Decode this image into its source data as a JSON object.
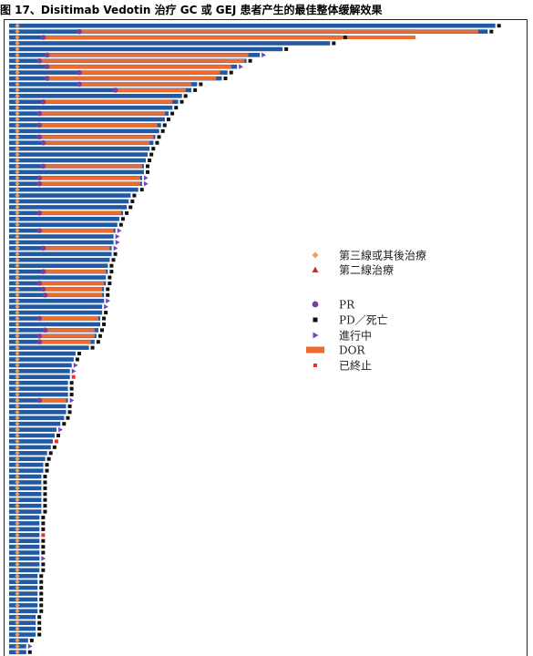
{
  "figure": {
    "title": "图 17、Disitimab Vedotin 治疗 GC 或 GEJ 患者产生的最佳整体缓解效果"
  },
  "colors": {
    "bar": "#2259a3",
    "dor": "#ee6b2c",
    "third_line": "#f2a154",
    "second_line": "#b83a2c",
    "pr": "#7b3f9b",
    "pd": "#111111",
    "ongoing": "#7a44b8",
    "stopped": "#e8322a"
  },
  "chart_data": {
    "type": "bar",
    "orientation": "horizontal",
    "title": "图 17、Disitimab Vedotin 治疗 GC 或 GEJ 患者产生的最佳整体缓解效果",
    "xlabel": "",
    "ylabel": "",
    "xlim": [
      0,
      26
    ],
    "legend": {
      "placement": "right",
      "entries": [
        {
          "label": "第三線或其後治療",
          "marker": "diamond"
        },
        {
          "label": "第二線治療",
          "marker": "triangle-up"
        },
        {
          "label": "PR",
          "marker": "circle"
        },
        {
          "label": "PD／死亡",
          "marker": "square"
        },
        {
          "label": "進行中",
          "marker": "triangle-right"
        },
        {
          "label": "DOR",
          "marker": "bar"
        },
        {
          "label": "已終止",
          "marker": "small-square"
        }
      ]
    },
    "series": [
      {
        "name": "第三線或其後治療",
        "values": []
      }
    ],
    "patients": [
      {
        "duration": 25.6,
        "line": "third",
        "end": "pd"
      },
      {
        "duration": 25.2,
        "line": "third",
        "pr": 3.7,
        "dor_end": 24.7,
        "end": "pd"
      },
      {
        "duration": 17.5,
        "line": "third",
        "pr": 1.8,
        "dor_end": 21.4,
        "end": "pd"
      },
      {
        "duration": 16.9,
        "line": "third",
        "end": "pd"
      },
      {
        "duration": 14.4,
        "line": "third",
        "end": "pd"
      },
      {
        "duration": 13.2,
        "line": "third",
        "pr": 2.0,
        "dor_end": 12.6,
        "end": "ongoing"
      },
      {
        "duration": 12.5,
        "line": "third",
        "pr": 1.6,
        "dor_end": 12.4,
        "end": "pd"
      },
      {
        "duration": 12.0,
        "line": "third",
        "pr": 2.0,
        "dor_end": 11.7,
        "end": "ongoing"
      },
      {
        "duration": 11.5,
        "line": "third",
        "pr": 3.7,
        "dor_end": 11.1,
        "end": "pd"
      },
      {
        "duration": 11.2,
        "line": "third",
        "pr": 2.0,
        "dor_end": 10.9,
        "end": "pd"
      },
      {
        "duration": 9.9,
        "line": "third",
        "pr": 3.7,
        "dor_end": 9.6,
        "end": "pd"
      },
      {
        "duration": 9.6,
        "line": "third",
        "pr": 5.6,
        "dor_end": 9.3,
        "end": "pd"
      },
      {
        "duration": 9.1,
        "line": "third",
        "end": "pd"
      },
      {
        "duration": 8.9,
        "line": "third",
        "pr": 1.8,
        "dor_end": 8.6,
        "end": "pd"
      },
      {
        "duration": 8.6,
        "line": "third",
        "end": "pd"
      },
      {
        "duration": 8.4,
        "line": "third",
        "pr": 1.6,
        "dor_end": 8.2,
        "end": "pd"
      },
      {
        "duration": 8.2,
        "line": "third",
        "end": "pd"
      },
      {
        "duration": 8.0,
        "line": "third",
        "pr": 1.6,
        "dor_end": 7.8,
        "end": "pd"
      },
      {
        "duration": 7.9,
        "line": "third",
        "end": "pd"
      },
      {
        "duration": 7.7,
        "line": "third",
        "pr": 1.6,
        "dor_end": 7.6,
        "end": "pd"
      },
      {
        "duration": 7.6,
        "line": "third",
        "pr": 1.8,
        "dor_end": 7.4,
        "end": "pd"
      },
      {
        "duration": 7.4,
        "line": "third",
        "end": "pd"
      },
      {
        "duration": 7.3,
        "line": "third",
        "end": "pd"
      },
      {
        "duration": 7.2,
        "line": "third",
        "end": "pd"
      },
      {
        "duration": 7.1,
        "line": "third",
        "pr": 1.8,
        "dor_end": 7.0,
        "end": "pd"
      },
      {
        "duration": 7.1,
        "line": "third",
        "end": "pd"
      },
      {
        "duration": 7.0,
        "line": "third",
        "pr": 1.6,
        "dor_end": 6.9,
        "end": "ongoing"
      },
      {
        "duration": 7.0,
        "line": "third",
        "pr": 1.6,
        "dor_end": 6.9,
        "end": "ongoing"
      },
      {
        "duration": 6.8,
        "line": "third",
        "end": "pd"
      },
      {
        "duration": 6.4,
        "line": "third",
        "end": "pd"
      },
      {
        "duration": 6.3,
        "line": "third",
        "end": "pd"
      },
      {
        "duration": 6.2,
        "line": "third",
        "end": "pd"
      },
      {
        "duration": 6.0,
        "line": "third",
        "pr": 1.6,
        "dor_end": 5.9,
        "end": "pd"
      },
      {
        "duration": 5.8,
        "line": "third",
        "end": "pd"
      },
      {
        "duration": 5.7,
        "line": "third",
        "end": "pd"
      },
      {
        "duration": 5.6,
        "line": "third",
        "pr": 1.6,
        "dor_end": 5.5,
        "end": "ongoing"
      },
      {
        "duration": 5.5,
        "line": "third",
        "end": "ongoing"
      },
      {
        "duration": 5.5,
        "line": "third",
        "end": "ongoing"
      },
      {
        "duration": 5.4,
        "line": "third",
        "pr": 1.8,
        "dor_end": 5.3,
        "end": "ongoing"
      },
      {
        "duration": 5.4,
        "line": "third",
        "end": "pd"
      },
      {
        "duration": 5.3,
        "line": "third",
        "end": "pd"
      },
      {
        "duration": 5.2,
        "line": "third",
        "end": "pd"
      },
      {
        "duration": 5.2,
        "line": "third",
        "pr": 1.8,
        "dor_end": 5.1,
        "end": "pd"
      },
      {
        "duration": 5.1,
        "line": "third",
        "end": "pd"
      },
      {
        "duration": 5.1,
        "line": "third",
        "pr": 1.6,
        "dor_end": 5.0,
        "end": "pd"
      },
      {
        "duration": 5.0,
        "line": "third",
        "pr": 1.8,
        "dor_end": 4.9,
        "end": "pd"
      },
      {
        "duration": 5.0,
        "line": "third",
        "pr": 1.9,
        "dor_end": 4.9,
        "end": "pd"
      },
      {
        "duration": 5.0,
        "line": "third",
        "end": "ongoing"
      },
      {
        "duration": 4.9,
        "line": "third",
        "end": "ongoing"
      },
      {
        "duration": 4.9,
        "line": "third",
        "end": "pd"
      },
      {
        "duration": 4.8,
        "line": "third",
        "pr": 1.6,
        "dor_end": 4.7,
        "end": "pd"
      },
      {
        "duration": 4.8,
        "line": "third",
        "end": "pd"
      },
      {
        "duration": 4.7,
        "line": "third",
        "pr": 1.9,
        "dor_end": 4.5,
        "end": "pd"
      },
      {
        "duration": 4.6,
        "line": "third",
        "pr": 1.6,
        "dor_end": 4.5,
        "end": "pd"
      },
      {
        "duration": 4.5,
        "line": "third",
        "pr": 1.6,
        "dor_end": 4.3,
        "end": "pd"
      },
      {
        "duration": 4.2,
        "line": "third",
        "end": "pd"
      },
      {
        "duration": 3.5,
        "line": "third",
        "end": "pd"
      },
      {
        "duration": 3.4,
        "line": "third",
        "end": "pd"
      },
      {
        "duration": 3.3,
        "line": "third",
        "end": "ongoing"
      },
      {
        "duration": 3.2,
        "line": "third",
        "end": "ongoing"
      },
      {
        "duration": 3.2,
        "line": "third",
        "end": "stopped"
      },
      {
        "duration": 3.1,
        "line": "third",
        "end": "pd"
      },
      {
        "duration": 3.1,
        "line": "third",
        "end": "pd"
      },
      {
        "duration": 3.1,
        "line": "third",
        "end": "pd"
      },
      {
        "duration": 3.1,
        "line": "third",
        "pr": 1.6,
        "dor_end": 3.0,
        "end": "ongoing"
      },
      {
        "duration": 3.0,
        "line": "third",
        "end": "pd"
      },
      {
        "duration": 3.0,
        "line": "third",
        "end": "pd"
      },
      {
        "duration": 2.9,
        "line": "third",
        "end": "pd"
      },
      {
        "duration": 2.7,
        "line": "third",
        "end": "pd"
      },
      {
        "duration": 2.5,
        "line": "third",
        "end": "ongoing"
      },
      {
        "duration": 2.4,
        "line": "third",
        "end": "pd"
      },
      {
        "duration": 2.3,
        "line": "third",
        "end": "stopped"
      },
      {
        "duration": 2.2,
        "line": "third",
        "end": "pd"
      },
      {
        "duration": 2.0,
        "line": "third",
        "end": "pd"
      },
      {
        "duration": 1.9,
        "line": "third",
        "end": "pd"
      },
      {
        "duration": 1.8,
        "line": "third",
        "end": "pd"
      },
      {
        "duration": 1.8,
        "line": "third",
        "end": "pd"
      },
      {
        "duration": 1.7,
        "line": "third",
        "end": "pd"
      },
      {
        "duration": 1.7,
        "line": "third",
        "end": "pd"
      },
      {
        "duration": 1.7,
        "line": "third",
        "end": "pd"
      },
      {
        "duration": 1.7,
        "line": "third",
        "end": "pd"
      },
      {
        "duration": 1.7,
        "line": "third",
        "end": "pd"
      },
      {
        "duration": 1.7,
        "line": "third",
        "end": "pd"
      },
      {
        "duration": 1.7,
        "line": "third",
        "end": "pd"
      },
      {
        "duration": 1.6,
        "line": "third",
        "end": "pd"
      },
      {
        "duration": 1.6,
        "line": "third",
        "end": "pd"
      },
      {
        "duration": 1.6,
        "line": "third",
        "end": "pd"
      },
      {
        "duration": 1.6,
        "line": "third",
        "end": "stopped"
      },
      {
        "duration": 1.6,
        "line": "third",
        "end": "pd"
      },
      {
        "duration": 1.6,
        "line": "third",
        "end": "pd"
      },
      {
        "duration": 1.6,
        "line": "third",
        "end": "pd"
      },
      {
        "duration": 1.6,
        "line": "third",
        "end": "ongoing"
      },
      {
        "duration": 1.6,
        "line": "third",
        "end": "pd"
      },
      {
        "duration": 1.6,
        "line": "third",
        "end": "pd"
      },
      {
        "duration": 1.5,
        "line": "third",
        "end": "pd"
      },
      {
        "duration": 1.5,
        "line": "third",
        "end": "pd"
      },
      {
        "duration": 1.5,
        "line": "third",
        "end": "pd"
      },
      {
        "duration": 1.5,
        "line": "third",
        "end": "pd"
      },
      {
        "duration": 1.5,
        "line": "third",
        "end": "pd"
      },
      {
        "duration": 1.5,
        "line": "third",
        "end": "pd"
      },
      {
        "duration": 1.5,
        "line": "third",
        "end": "pd"
      },
      {
        "duration": 1.4,
        "line": "third",
        "end": "pd"
      },
      {
        "duration": 1.4,
        "line": "third",
        "end": "pd"
      },
      {
        "duration": 1.4,
        "line": "third",
        "end": "pd"
      },
      {
        "duration": 1.4,
        "line": "third",
        "end": "pd"
      },
      {
        "duration": 1.0,
        "line": "third",
        "end": "pd"
      },
      {
        "duration": 0.9,
        "line": "third",
        "end": "ongoing"
      },
      {
        "duration": 0.9,
        "line": "third",
        "end": "pd"
      }
    ]
  }
}
